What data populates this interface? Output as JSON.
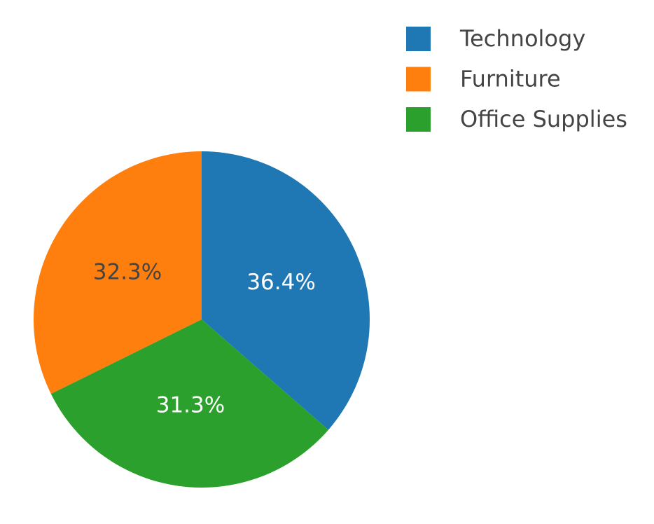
{
  "chart_data": {
    "type": "pie",
    "categories": [
      "Technology",
      "Furniture",
      "Office Supplies"
    ],
    "values": [
      36.4,
      32.3,
      31.3
    ],
    "value_labels": [
      "36.4%",
      "32.3%",
      "31.3%"
    ],
    "colors": [
      "#1f77b4",
      "#ff7f0e",
      "#2ca02c"
    ],
    "label_colors": [
      "#ffffff",
      "#444444",
      "#ffffff"
    ],
    "direction": "counterclockwise",
    "legend": "top-right"
  }
}
